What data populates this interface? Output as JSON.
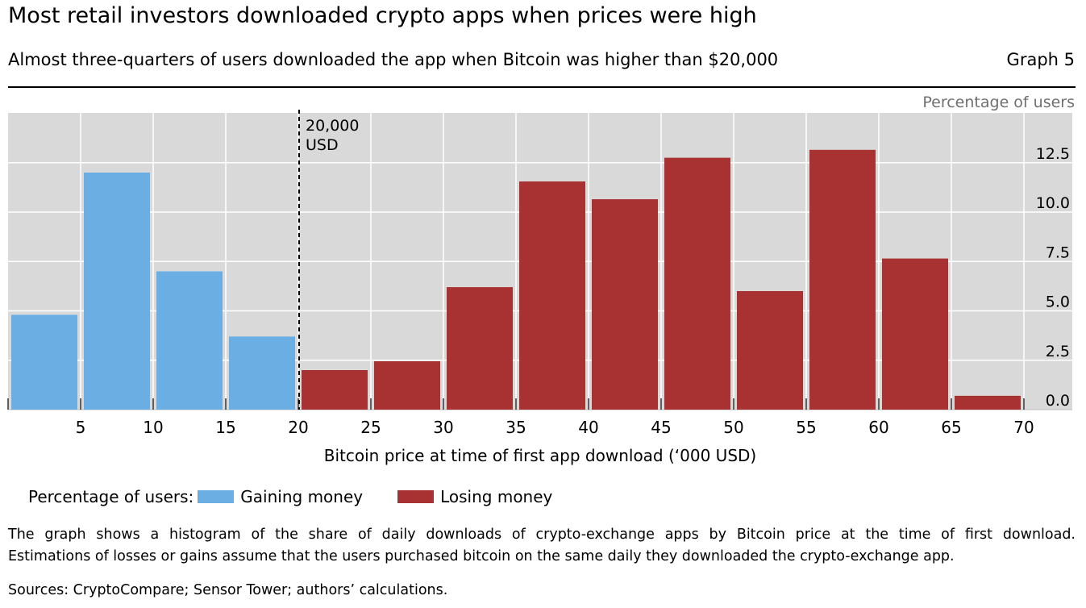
{
  "header": {
    "title": "Most retail investors downloaded crypto apps when prices were high",
    "subtitle": "Almost three-quarters of users downloaded the app when Bitcoin was higher than $20,000",
    "graph_number": "Graph 5"
  },
  "legend": {
    "prefix": "Percentage of users:",
    "gaining_label": "Gaining money",
    "losing_label": "Losing money"
  },
  "footer": {
    "note_line1": "The graph shows a histogram of the share of daily downloads of crypto-exchange apps by Bitcoin price at the time of first download.",
    "note_line2": "Estimations of losses or gains assume that the users purchased bitcoin on the same daily they downloaded the crypto-exchange app.",
    "sources": "Sources: CryptoCompare; Sensor Tower; authors’ calculations."
  },
  "colors": {
    "gaining": "#6aaee3",
    "losing": "#a83232",
    "plot_background": "#d9d9d9",
    "gridline": "#ffffff"
  },
  "chart_data": {
    "type": "bar",
    "x_bin_edges": [
      0,
      5,
      10,
      15,
      20,
      25,
      30,
      35,
      40,
      45,
      50,
      55,
      60,
      65,
      70
    ],
    "x_ticks": [
      5,
      10,
      15,
      20,
      25,
      30,
      35,
      40,
      45,
      50,
      55,
      60,
      65,
      70
    ],
    "x_tick_labels": [
      "5",
      "10",
      "15",
      "20",
      "25",
      "30",
      "35",
      "40",
      "45",
      "50",
      "55",
      "60",
      "65",
      "70"
    ],
    "xlabel": "Bitcoin price at time of first app download (‘000 USD)",
    "ylabel": "Percentage of users",
    "y_ticks": [
      0,
      2.5,
      5,
      7.5,
      10,
      12.5
    ],
    "y_tick_labels": [
      "0.0",
      "2.5",
      "5.0",
      "7.5",
      "10.0",
      "12.5"
    ],
    "ylim": [
      0,
      15
    ],
    "grid": true,
    "y_axis_position": "right",
    "series": [
      {
        "name": "Gaining money",
        "color": "#6aaee3",
        "bins": [
          [
            0,
            5
          ],
          [
            5,
            10
          ],
          [
            10,
            15
          ],
          [
            15,
            20
          ]
        ],
        "values": [
          4.8,
          12.0,
          7.0,
          3.7
        ]
      },
      {
        "name": "Losing money",
        "color": "#a83232",
        "bins": [
          [
            20,
            25
          ],
          [
            25,
            30
          ],
          [
            30,
            35
          ],
          [
            35,
            40
          ],
          [
            40,
            45
          ],
          [
            45,
            50
          ],
          [
            50,
            55
          ],
          [
            55,
            60
          ],
          [
            60,
            65
          ],
          [
            65,
            70
          ]
        ],
        "values": [
          2.0,
          2.45,
          6.2,
          11.55,
          10.65,
          12.75,
          6.0,
          13.15,
          7.65,
          0.7
        ]
      }
    ],
    "annotations": [
      {
        "x": 20,
        "style": "dashed-vertical-line",
        "label_line1": "20,000",
        "label_line2": "USD"
      }
    ]
  }
}
